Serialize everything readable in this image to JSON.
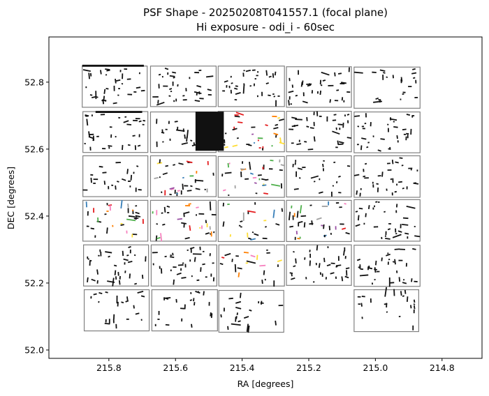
{
  "chart_data": {
    "type": "scatter",
    "title_line1": "PSF Shape - 20250208T041557.1 (focal plane)",
    "title_line2": "Hi exposure - odi_i - 60sec",
    "xlabel": "RA [degrees]",
    "ylabel": "DEC [degrees]",
    "xlim": [
      215.98,
      214.68
    ],
    "ylim": [
      51.975,
      52.935
    ],
    "x_inverted": true,
    "x_ticks": [
      215.8,
      215.6,
      215.4,
      215.2,
      215.0,
      214.8
    ],
    "x_tick_labels": [
      "215.8",
      "215.6",
      "215.4",
      "215.2",
      "215.0",
      "214.8"
    ],
    "y_ticks": [
      52.0,
      52.2,
      52.4,
      52.6,
      52.8
    ],
    "y_tick_labels": [
      "52.0",
      "52.2",
      "52.4",
      "52.6",
      "52.8"
    ],
    "grid": false,
    "legend": false,
    "colors": {
      "ota_outline": "#808080",
      "whisker": "#111111",
      "axis": "#000000"
    },
    "whisker_colors": [
      "#e41a1c",
      "#377eb8",
      "#4daf4a",
      "#984ea3",
      "#ff7f00",
      "#ffdd33",
      "#a0a0a0",
      "#f781bf"
    ],
    "ota_cells": [
      {
        "row": 0,
        "col": 0,
        "ra": [
          215.88,
          215.685
        ],
        "dec": [
          52.725,
          52.848
        ],
        "density": "medium",
        "colored": false
      },
      {
        "row": 0,
        "col": 1,
        "ra": [
          215.675,
          215.478
        ],
        "dec": [
          52.727,
          52.848
        ],
        "density": "medium",
        "colored": false
      },
      {
        "row": 0,
        "col": 2,
        "ra": [
          215.472,
          215.273
        ],
        "dec": [
          52.727,
          52.848
        ],
        "density": "medium",
        "colored": false
      },
      {
        "row": 0,
        "col": 3,
        "ra": [
          215.267,
          215.072
        ],
        "dec": [
          52.725,
          52.846
        ],
        "density": "medium",
        "colored": false
      },
      {
        "row": 0,
        "col": 4,
        "ra": [
          215.064,
          214.866
        ],
        "dec": [
          52.722,
          52.845
        ],
        "density": "low",
        "colored": false
      },
      {
        "row": 1,
        "col": 0,
        "ra": [
          215.878,
          215.683
        ],
        "dec": [
          52.59,
          52.712
        ],
        "density": "medium",
        "colored": false
      },
      {
        "row": 1,
        "col": 1,
        "ra": [
          215.675,
          215.478
        ],
        "dec": [
          52.59,
          52.711
        ],
        "density": "low",
        "colored": false
      },
      {
        "row": 1,
        "col": 2,
        "ra": [
          215.472,
          215.273
        ],
        "dec": [
          52.592,
          52.713
        ],
        "density": "medium",
        "colored": true
      },
      {
        "row": 1,
        "col": 3,
        "ra": [
          215.267,
          215.072
        ],
        "dec": [
          52.592,
          52.713
        ],
        "density": "medium",
        "colored": false
      },
      {
        "row": 1,
        "col": 4,
        "ra": [
          215.064,
          214.866
        ],
        "dec": [
          52.589,
          52.711
        ],
        "density": "medium",
        "colored": false
      },
      {
        "row": 2,
        "col": 0,
        "ra": [
          215.878,
          215.683
        ],
        "dec": [
          52.458,
          52.58
        ],
        "density": "low",
        "colored": false
      },
      {
        "row": 2,
        "col": 1,
        "ra": [
          215.675,
          215.478
        ],
        "dec": [
          52.458,
          52.58
        ],
        "density": "medium",
        "colored": true
      },
      {
        "row": 2,
        "col": 2,
        "ra": [
          215.472,
          215.273
        ],
        "dec": [
          52.456,
          52.578
        ],
        "density": "medium",
        "colored": true
      },
      {
        "row": 2,
        "col": 3,
        "ra": [
          215.267,
          215.072
        ],
        "dec": [
          52.457,
          52.58
        ],
        "density": "low",
        "colored": false
      },
      {
        "row": 2,
        "col": 4,
        "ra": [
          215.064,
          214.866
        ],
        "dec": [
          52.456,
          52.58
        ],
        "density": "medium",
        "colored": false
      },
      {
        "row": 3,
        "col": 0,
        "ra": [
          215.878,
          215.683
        ],
        "dec": [
          52.325,
          52.447
        ],
        "density": "medium",
        "colored": true
      },
      {
        "row": 3,
        "col": 1,
        "ra": [
          215.675,
          215.478
        ],
        "dec": [
          52.325,
          52.447
        ],
        "density": "medium",
        "colored": true
      },
      {
        "row": 3,
        "col": 2,
        "ra": [
          215.472,
          215.273
        ],
        "dec": [
          52.324,
          52.447
        ],
        "density": "low",
        "colored": true
      },
      {
        "row": 3,
        "col": 3,
        "ra": [
          215.267,
          215.072
        ],
        "dec": [
          52.324,
          52.447
        ],
        "density": "medium",
        "colored": true
      },
      {
        "row": 3,
        "col": 4,
        "ra": [
          215.064,
          214.866
        ],
        "dec": [
          52.325,
          52.449
        ],
        "density": "medium",
        "colored": false
      },
      {
        "row": 4,
        "col": 0,
        "ra": [
          215.876,
          215.681
        ],
        "dec": [
          52.191,
          52.314
        ],
        "density": "medium",
        "colored": false
      },
      {
        "row": 4,
        "col": 1,
        "ra": [
          215.673,
          215.476
        ],
        "dec": [
          52.191,
          52.314
        ],
        "density": "medium",
        "colored": false
      },
      {
        "row": 4,
        "col": 2,
        "ra": [
          215.47,
          215.273
        ],
        "dec": [
          52.191,
          52.314
        ],
        "density": "low",
        "colored": true
      },
      {
        "row": 4,
        "col": 3,
        "ra": [
          215.267,
          215.072
        ],
        "dec": [
          52.193,
          52.314
        ],
        "density": "medium",
        "colored": false
      },
      {
        "row": 4,
        "col": 4,
        "ra": [
          215.064,
          214.866
        ],
        "dec": [
          52.19,
          52.313
        ],
        "density": "medium",
        "colored": false
      },
      {
        "row": 5,
        "col": 0,
        "ra": [
          215.874,
          215.679
        ],
        "dec": [
          52.057,
          52.18
        ],
        "density": "low",
        "colored": false
      },
      {
        "row": 5,
        "col": 1,
        "ra": [
          215.671,
          215.474
        ],
        "dec": [
          52.057,
          52.18
        ],
        "density": "low",
        "colored": false
      },
      {
        "row": 5,
        "col": 2,
        "ra": [
          215.47,
          215.275
        ],
        "dec": [
          52.053,
          52.178
        ],
        "density": "low",
        "colored": false
      },
      {
        "row": 5,
        "col": 4,
        "ra": [
          215.064,
          214.87
        ],
        "dec": [
          52.055,
          52.18
        ],
        "density": "low",
        "colored": false
      }
    ],
    "dense_features": [
      {
        "ra": [
          215.54,
          215.455
        ],
        "dec": [
          52.595,
          52.712
        ]
      },
      {
        "ra": [
          215.88,
          215.695
        ],
        "dec": [
          52.846,
          52.852
        ]
      },
      {
        "ra": [
          215.84,
          215.7
        ],
        "dec": [
          52.708,
          52.714
        ]
      }
    ]
  }
}
